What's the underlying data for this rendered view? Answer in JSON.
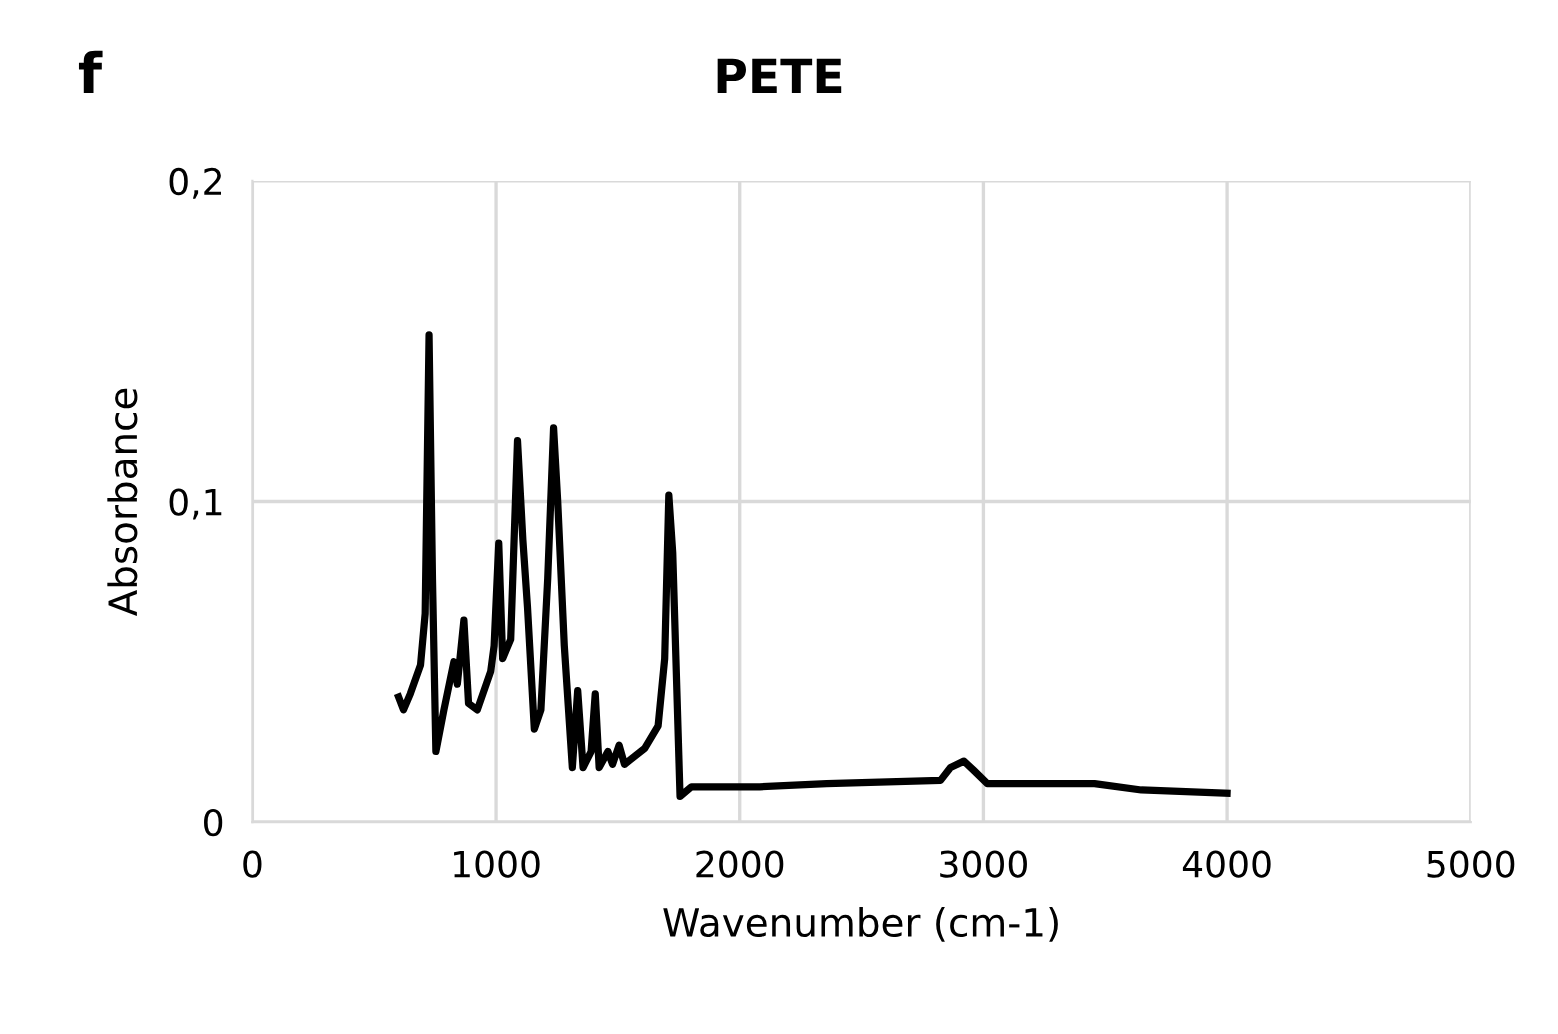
{
  "chart_data": {
    "type": "line",
    "title": "PETE",
    "xlabel": "Wavenumber (cm-1)",
    "ylabel": "Absorbance",
    "annotations": [
      "f"
    ],
    "series": [
      {
        "color": "#000000",
        "x": [
          600,
          620,
          648,
          690,
          709,
          725,
          739,
          753,
          786,
          827,
          841,
          868,
          887,
          923,
          978,
          992,
          1011,
          1027,
          1060,
          1088,
          1110,
          1129,
          1157,
          1184,
          1212,
          1236,
          1253,
          1280,
          1313,
          1335,
          1357,
          1390,
          1407,
          1423,
          1459,
          1478,
          1505,
          1527,
          1610,
          1665,
          1692,
          1709,
          1725,
          1755,
          1802,
          1912,
          1967,
          2082,
          2357,
          2824,
          2865,
          2920,
          2962,
          3016,
          3456,
          3648,
          4000
        ],
        "values": [
          0.039,
          0.035,
          0.04,
          0.049,
          0.065,
          0.152,
          0.076,
          0.022,
          0.035,
          0.05,
          0.043,
          0.063,
          0.037,
          0.035,
          0.047,
          0.055,
          0.087,
          0.051,
          0.057,
          0.119,
          0.088,
          0.067,
          0.029,
          0.035,
          0.076,
          0.123,
          0.1,
          0.055,
          0.017,
          0.041,
          0.017,
          0.022,
          0.04,
          0.017,
          0.022,
          0.018,
          0.024,
          0.018,
          0.023,
          0.03,
          0.051,
          0.102,
          0.084,
          0.008,
          0.011,
          0.011,
          0.011,
          0.011,
          0.012,
          0.013,
          0.017,
          0.019,
          0.016,
          0.012,
          0.012,
          0.01,
          0.009
        ]
      }
    ],
    "xlim": [
      0,
      5000
    ],
    "xticks": [
      0,
      1000,
      2000,
      3000,
      4000,
      5000
    ],
    "ylim": [
      0,
      0.2
    ],
    "yticks": [
      {
        "value": 0,
        "label": "0"
      },
      {
        "value": 0.1,
        "label": "0,1"
      },
      {
        "value": 0.2,
        "label": "0,2"
      }
    ],
    "grid": true,
    "legend": false,
    "marker": "none",
    "line_style": "solid"
  }
}
